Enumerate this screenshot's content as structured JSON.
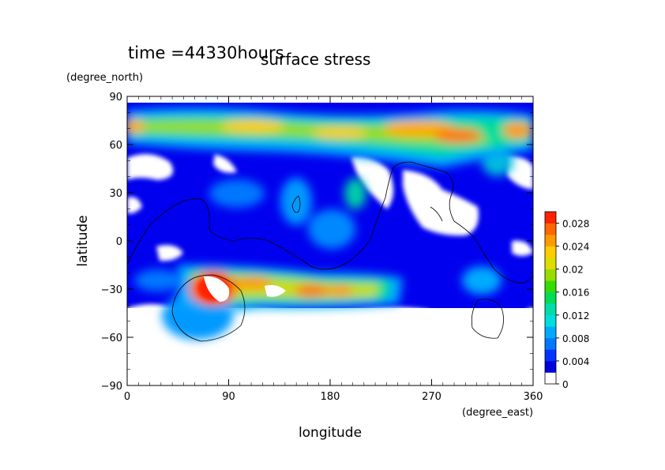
{
  "chart_data": {
    "type": "heatmap",
    "title": "surface stress",
    "time_label": "time =44330hours",
    "xlabel": "longitude",
    "ylabel": "latitude",
    "xunit": "(degree_east)",
    "yunit": "(degree_north)",
    "xlim": [
      0,
      360
    ],
    "ylim": [
      -90,
      90
    ],
    "xticks": [
      "0",
      "90",
      "180",
      "270",
      "360"
    ],
    "yticks": [
      "90",
      "60",
      "30",
      "0",
      "−30",
      "−60",
      "−90"
    ],
    "colorbar": {
      "ticks": [
        "0",
        "0.004",
        "0.008",
        "0.012",
        "0.016",
        "0.02",
        "0.024",
        "0.028"
      ],
      "min": 0,
      "max": 0.03,
      "colors": [
        "#ffffff",
        "#0000dd",
        "#0033ff",
        "#0077ff",
        "#00aaff",
        "#00dddd",
        "#00ddaa",
        "#00dd55",
        "#33dd00",
        "#99dd00",
        "#dddd00",
        "#ffcc00",
        "#ff9900",
        "#ff6600",
        "#ff2200"
      ]
    },
    "features": [
      {
        "name": "northern high-latitude band",
        "lon_range": [
          0,
          360
        ],
        "lat_center": 67,
        "peak": 0.026
      },
      {
        "name": "southern mid-latitude band",
        "lon_range": [
          40,
          240
        ],
        "lat_center": -27,
        "peak": 0.024
      },
      {
        "name": "southern peak",
        "lon": 75,
        "lat": -35,
        "peak": 0.03
      }
    ]
  }
}
